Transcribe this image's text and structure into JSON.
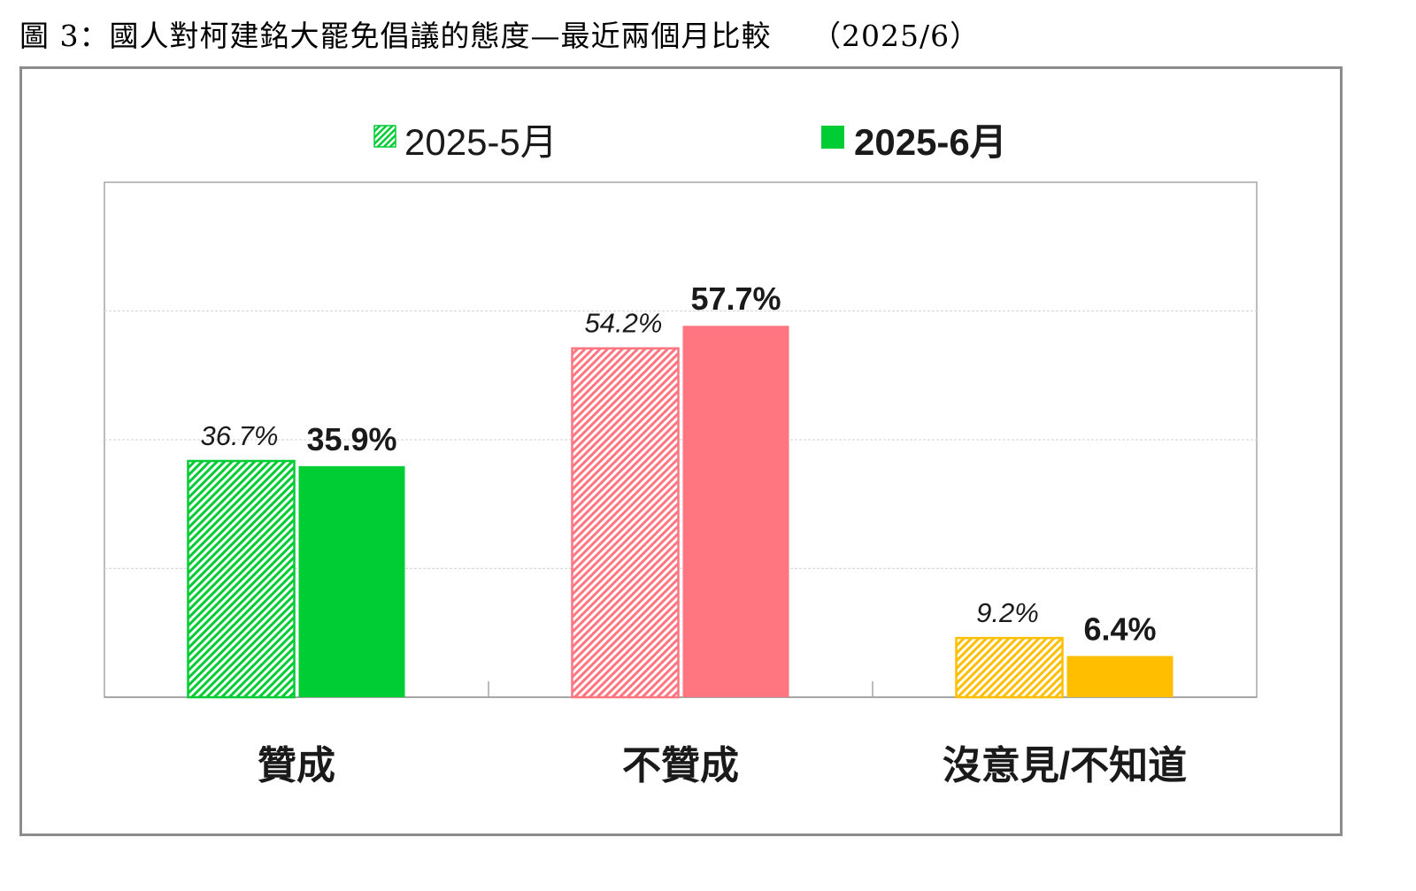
{
  "figure": {
    "title": "圖 3：國人對柯建銘大罷免倡議的態度—最近兩個月比較　 （2025/6）"
  },
  "chart_data": {
    "type": "bar",
    "categories": [
      "贊成",
      "不贊成",
      "沒意見/不知道"
    ],
    "series": [
      {
        "name": "2025-5月",
        "values": [
          36.7,
          54.2,
          9.2
        ],
        "value_labels": [
          "36.7%",
          "54.2%",
          "9.2%"
        ],
        "style": "hatched",
        "label_style": "italic"
      },
      {
        "name": "2025-6月",
        "values": [
          35.9,
          57.7,
          6.4
        ],
        "value_labels": [
          "35.9%",
          "57.7%",
          "6.4%"
        ],
        "style": "solid",
        "label_style": "bold"
      }
    ],
    "category_colors": [
      "#00cc33",
      "#ff7580",
      "#ffbf00"
    ],
    "legend_swatch_color": "#00cc33",
    "ylim": [
      0,
      80
    ],
    "gridlines": [
      20,
      40,
      60
    ],
    "grid": true,
    "legend_position": "top-center",
    "xlabel": "",
    "ylabel": ""
  }
}
